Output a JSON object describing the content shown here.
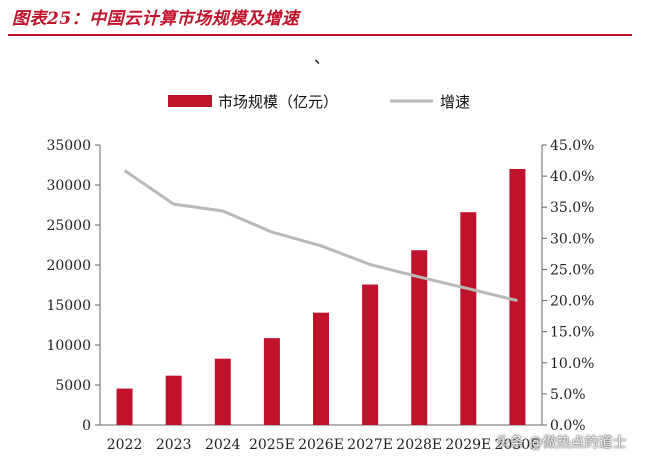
{
  "header": {
    "title": "图表25：中国云计算市场规模及增速",
    "stray_mark": "、"
  },
  "watermark": "头条 @做热点的道士",
  "colors": {
    "accent": "#c0122a",
    "bar": "#c0122a",
    "line": "#b9b9b9",
    "axis": "#666666"
  },
  "chart_data": {
    "type": "bar",
    "title": "",
    "categories": [
      "2022",
      "2023",
      "2024",
      "2025E",
      "2026E",
      "2027E",
      "2028E",
      "2029E",
      "2030E"
    ],
    "series": [
      {
        "name": "市场规模（亿元）",
        "type": "bar",
        "axis": "left",
        "values": [
          4550,
          6165,
          8288,
          10859,
          14040,
          17558,
          21845,
          26601,
          32000
        ]
      },
      {
        "name": "增速",
        "type": "line",
        "axis": "right",
        "values": [
          40.9,
          35.5,
          34.4,
          31.0,
          28.8,
          25.8,
          23.8,
          21.9,
          20.0
        ]
      }
    ],
    "y_left": {
      "label": "",
      "lim": [
        0,
        35000
      ],
      "ticks": [
        "0",
        "5000",
        "10000",
        "15000",
        "20000",
        "25000",
        "30000",
        "35000"
      ]
    },
    "y_right": {
      "label": "",
      "lim": [
        0,
        45
      ],
      "unit": "%",
      "ticks": [
        "0.0%",
        "5.0%",
        "10.0%",
        "15.0%",
        "20.0%",
        "25.0%",
        "30.0%",
        "35.0%",
        "40.0%",
        "45.0%"
      ]
    },
    "grid": false,
    "legend": "top-center"
  }
}
